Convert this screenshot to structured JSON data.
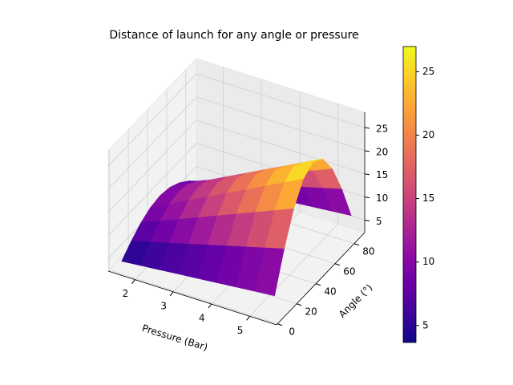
{
  "chart_data": {
    "type": "surface",
    "title": "Distance of launch for any angle or pressure",
    "xlabel": "Pressure (Bar)",
    "ylabel": "Angle (°)",
    "x": [
      1.5,
      2,
      2.5,
      3,
      3.5,
      4,
      4.5,
      5,
      5.5
    ],
    "y": [
      5,
      15,
      25,
      35,
      45,
      55,
      65,
      75,
      85
    ],
    "z": [
      [
        3.66,
        5.84,
        7.61,
        8.77,
        9.18,
        8.77,
        7.61,
        5.84,
        3.66
      ],
      [
        4.05,
        6.95,
        9.32,
        10.86,
        11.4,
        10.86,
        9.32,
        6.95,
        4.05
      ],
      [
        4.43,
        8.06,
        11.02,
        12.95,
        13.63,
        12.95,
        11.02,
        8.06,
        4.43
      ],
      [
        4.82,
        9.18,
        12.73,
        15.05,
        15.85,
        15.05,
        12.73,
        9.18,
        4.82
      ],
      [
        5.2,
        10.29,
        14.43,
        17.14,
        18.08,
        17.14,
        14.43,
        10.29,
        5.2
      ],
      [
        5.59,
        11.4,
        16.13,
        19.23,
        20.3,
        19.23,
        16.13,
        11.4,
        5.59
      ],
      [
        5.98,
        12.51,
        17.84,
        21.32,
        22.53,
        21.32,
        17.84,
        12.51,
        5.98
      ],
      [
        6.36,
        13.63,
        19.54,
        23.41,
        24.75,
        23.41,
        19.54,
        13.63,
        6.36
      ],
      [
        6.75,
        14.74,
        21.25,
        25.5,
        26.98,
        25.5,
        21.25,
        14.74,
        6.75
      ]
    ],
    "xlim": [
      1.3,
      5.7
    ],
    "ylim": [
      -1,
      91
    ],
    "zlim": [
      2.3,
      28.3
    ],
    "xticks": [
      2,
      3,
      4,
      5
    ],
    "yticks": [
      0,
      20,
      40,
      60,
      80
    ],
    "zticks": [
      5,
      10,
      15,
      20,
      25
    ],
    "colorbar_ticks": [
      5,
      10,
      15,
      20,
      25
    ],
    "colormap": "plasma",
    "grid": true
  }
}
